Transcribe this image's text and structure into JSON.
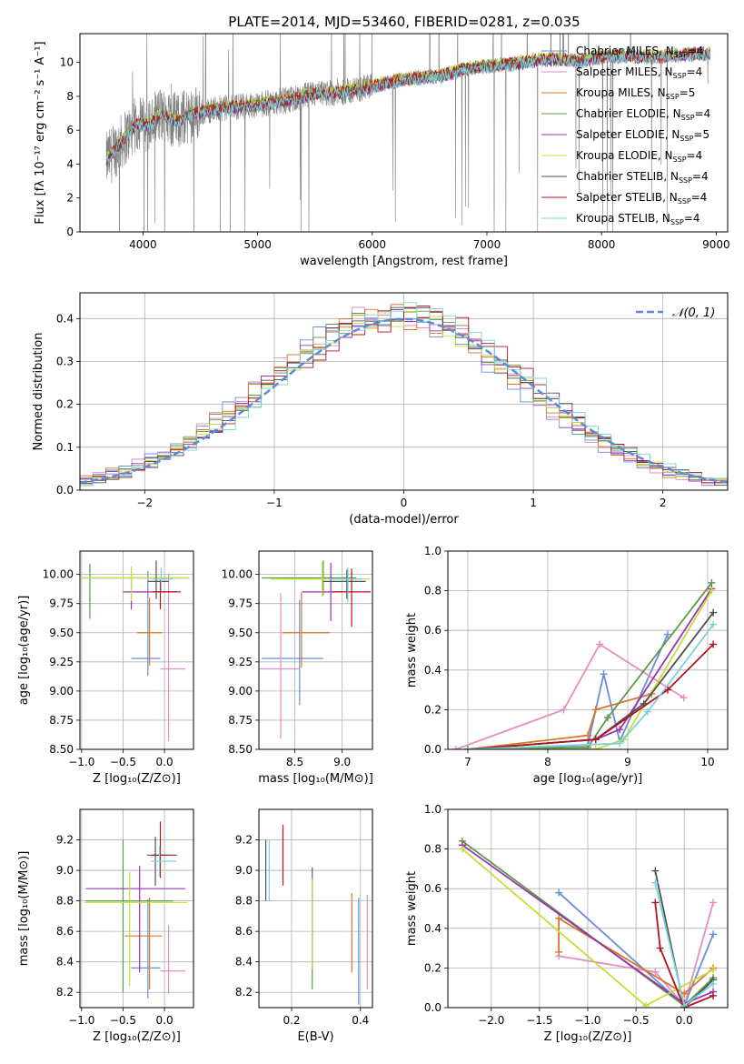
{
  "figure": {
    "title": "PLATE=2014, MJD=53460, FIBERID=0281, z=0.035"
  },
  "models": [
    {
      "name": "Chabrier MILES",
      "nssp": "4",
      "color": "#6a8ed6"
    },
    {
      "name": "Salpeter MILES",
      "nssp": "4",
      "color": "#e58dc3"
    },
    {
      "name": "Kroupa MILES",
      "nssp": "5",
      "color": "#d4782a"
    },
    {
      "name": "Chabrier ELODIE",
      "nssp": "4",
      "color": "#5a9a4a"
    },
    {
      "name": "Salpeter ELODIE",
      "nssp": "5",
      "color": "#9a32b4"
    },
    {
      "name": "Kroupa ELODIE",
      "nssp": "4",
      "color": "#c8dc3c"
    },
    {
      "name": "Chabrier STELIB",
      "nssp": "4",
      "color": "#505050"
    },
    {
      "name": "Salpeter STELIB",
      "nssp": "4",
      "color": "#b4141e"
    },
    {
      "name": "Kroupa STELIB",
      "nssp": "4",
      "color": "#78d2dc"
    }
  ],
  "chart_data": [
    {
      "id": "spectrum",
      "type": "line",
      "xlabel": "wavelength [Angstrom, rest frame]",
      "ylabel": "Flux [fλ 10⁻¹⁷ erg cm⁻² s⁻¹ A⁻¹]",
      "xlim": [
        3450,
        9100
      ],
      "ylim": [
        0,
        11.7
      ],
      "xticks": [
        4000,
        5000,
        6000,
        7000,
        8000,
        9000
      ],
      "yticks": [
        0,
        2,
        4,
        6,
        8,
        10
      ],
      "grid": false,
      "legend": "right",
      "data_series": {
        "name": "data",
        "color": "#808080",
        "x": [
          3680,
          3750,
          3850,
          3950,
          4050,
          4150,
          4300,
          4450,
          4600,
          4800,
          5000,
          5200,
          5400,
          5600,
          5800,
          6000,
          6200,
          6400,
          6600,
          6800,
          7000,
          7200,
          7400,
          7600,
          7800,
          8000,
          8200,
          8400,
          8600,
          8800,
          8950
        ],
        "y": [
          4.2,
          4.8,
          5.6,
          6.4,
          6.3,
          6.9,
          6.6,
          7.0,
          7.2,
          7.4,
          7.5,
          7.7,
          8.0,
          8.2,
          8.3,
          8.6,
          8.9,
          9.1,
          9.2,
          9.6,
          9.8,
          9.9,
          10.1,
          10.2,
          10.1,
          10.3,
          10.4,
          10.3,
          10.4,
          10.5,
          10.5
        ]
      },
      "model_offsets": [
        0.0,
        0.05,
        -0.05,
        0.08,
        -0.08,
        0.12,
        -0.02,
        0.03,
        -0.1
      ]
    },
    {
      "id": "residuals",
      "type": "histogram",
      "xlabel": "(data-model)/error",
      "ylabel": "Normed distribution",
      "xlim": [
        -2.5,
        2.5
      ],
      "ylim": [
        0,
        0.46
      ],
      "xticks": [
        -2,
        -1,
        0,
        1,
        2
      ],
      "yticks": [
        0.0,
        0.1,
        0.2,
        0.3,
        0.4
      ],
      "grid": true,
      "legend": "top-right",
      "reference": {
        "name": "𝒩(0, 1)",
        "color": "#5b8bd6",
        "mean": 0,
        "sigma": 1
      }
    },
    {
      "id": "age-vs-Z",
      "type": "errorbar",
      "xlabel": "Z [log₁₀(Z/Z⊙)]",
      "ylabel": "age  [log₁₀(age/yr)]",
      "xlim": [
        -1.02,
        0.35
      ],
      "ylim": [
        8.5,
        10.2
      ],
      "xticks": [
        -1.0,
        -0.5,
        0.0
      ],
      "yticks": [
        8.5,
        8.75,
        9.0,
        9.25,
        9.5,
        9.75,
        10.0
      ],
      "ytick_labels": [
        "8.50",
        "8.75",
        "9.00",
        "9.25",
        "9.50",
        "9.75",
        "10.00"
      ],
      "xtick_labels": [
        "−1.0",
        "−0.5",
        "0.0"
      ],
      "grid": true,
      "points": [
        {
          "x": -0.2,
          "xerr": [
            0.2,
            0.15
          ],
          "y": 9.28,
          "yerr": [
            0.15,
            0.75
          ]
        },
        {
          "x": 0.05,
          "xerr": [
            0.1,
            0.2
          ],
          "y": 9.19,
          "yerr": [
            0.62,
            0.82
          ]
        },
        {
          "x": -0.18,
          "xerr": [
            0.15,
            0.15
          ],
          "y": 9.5,
          "yerr": [
            0.28,
            0.3
          ]
        },
        {
          "x": -0.9,
          "xerr": [
            0.1,
            1.2
          ],
          "y": 9.97,
          "yerr": [
            0.35,
            0.12
          ]
        },
        {
          "x": -0.4,
          "xerr": [
            0.1,
            0.6
          ],
          "y": 9.85,
          "yerr": [
            0.15,
            0.15
          ]
        },
        {
          "x": -0.4,
          "xerr": [
            0.6,
            0.7
          ],
          "y": 9.97,
          "yerr": [
            0.2,
            0.1
          ]
        },
        {
          "x": -0.1,
          "xerr": [
            0.1,
            0.15
          ],
          "y": 9.94,
          "yerr": [
            0.15,
            0.18
          ]
        },
        {
          "x": -0.05,
          "xerr": [
            0.1,
            0.2
          ],
          "y": 9.85,
          "yerr": [
            0.15,
            0.1
          ]
        },
        {
          "x": -0.04,
          "xerr": [
            0.1,
            0.14
          ],
          "y": 9.96,
          "yerr": [
            0.1,
            0.1
          ]
        }
      ]
    },
    {
      "id": "age-vs-mass",
      "type": "errorbar",
      "xlabel": "mass [log₁₀(M/M⊙)]",
      "ylabel": "",
      "xlim": [
        8.12,
        9.32
      ],
      "ylim": [
        8.5,
        10.2
      ],
      "xticks": [
        8.5,
        9.0
      ],
      "xtick_labels": [
        "8.5",
        "9.0"
      ],
      "yticks": [
        8.5,
        8.75,
        9.0,
        9.25,
        9.5,
        9.75,
        10.0
      ],
      "ytick_labels": [
        "8.50",
        "8.75",
        "9.00",
        "9.25",
        "9.50",
        "9.75",
        "10.00"
      ],
      "grid": true,
      "points": [
        {
          "x": 8.55,
          "xerr": [
            0.4,
            0.25
          ],
          "y": 9.28,
          "yerr": [
            0.4,
            0.5
          ]
        },
        {
          "x": 8.35,
          "xerr": [
            0.25,
            0.2
          ],
          "y": 9.19,
          "yerr": [
            0.6,
            0.65
          ]
        },
        {
          "x": 8.57,
          "xerr": [
            0.2,
            0.3
          ],
          "y": 9.5,
          "yerr": [
            0.3,
            0.35
          ]
        },
        {
          "x": 8.8,
          "xerr": [
            0.65,
            0.35
          ],
          "y": 9.97,
          "yerr": [
            0.15,
            0.15
          ]
        },
        {
          "x": 8.88,
          "xerr": [
            0.3,
            0.2
          ],
          "y": 9.85,
          "yerr": [
            0.25,
            0.25
          ]
        },
        {
          "x": 8.79,
          "xerr": [
            0.55,
            0.5
          ],
          "y": 9.96,
          "yerr": [
            0.15,
            0.15
          ]
        },
        {
          "x": 9.05,
          "xerr": [
            0.25,
            0.2
          ],
          "y": 9.94,
          "yerr": [
            0.15,
            0.1
          ]
        },
        {
          "x": 9.1,
          "xerr": [
            0.2,
            0.2
          ],
          "y": 9.85,
          "yerr": [
            0.3,
            0.2
          ]
        },
        {
          "x": 9.06,
          "xerr": [
            0.2,
            0.15
          ],
          "y": 9.96,
          "yerr": [
            0.2,
            0.1
          ]
        }
      ]
    },
    {
      "id": "weight-vs-age",
      "type": "line",
      "xlabel": "age  [log₁₀(age/yr)]",
      "ylabel": "mass weight",
      "xlim": [
        6.75,
        10.25
      ],
      "ylim": [
        0,
        1.0
      ],
      "xticks": [
        7,
        8,
        9,
        10
      ],
      "yticks": [
        0.0,
        0.2,
        0.4,
        0.6,
        0.8,
        1.0
      ],
      "grid": true,
      "series": [
        {
          "x": [
            7.0,
            8.5,
            8.7,
            8.9,
            9.5
          ],
          "y": [
            0.0,
            0.02,
            0.38,
            0.04,
            0.58
          ]
        },
        {
          "x": [
            6.85,
            8.2,
            8.65,
            9.7
          ],
          "y": [
            0.0,
            0.2,
            0.53,
            0.26
          ]
        },
        {
          "x": [
            7.0,
            8.5,
            8.6,
            9.3
          ],
          "y": [
            0.0,
            0.07,
            0.2,
            0.28
          ]
        },
        {
          "x": [
            7.0,
            8.5,
            8.75,
            10.05
          ],
          "y": [
            0.0,
            0.01,
            0.16,
            0.84
          ]
        },
        {
          "x": [
            7.0,
            8.6,
            8.9,
            10.05
          ],
          "y": [
            0.0,
            0.05,
            0.1,
            0.81
          ]
        },
        {
          "x": [
            7.0,
            8.6,
            8.95,
            10.05
          ],
          "y": [
            0.0,
            0.0,
            0.05,
            0.8
          ]
        },
        {
          "x": [
            7.0,
            8.6,
            9.2,
            10.07
          ],
          "y": [
            0.0,
            0.05,
            0.23,
            0.69
          ]
        },
        {
          "x": [
            7.0,
            8.6,
            9.5,
            10.07
          ],
          "y": [
            0.0,
            0.05,
            0.3,
            0.53
          ]
        },
        {
          "x": [
            7.0,
            8.9,
            9.25,
            10.07
          ],
          "y": [
            0.0,
            0.03,
            0.19,
            0.63
          ]
        }
      ]
    },
    {
      "id": "mass-vs-Z",
      "type": "errorbar",
      "xlabel": "Z [log₁₀(Z/Z⊙)]",
      "ylabel": "mass [log₁₀(M/M⊙)]",
      "xlim": [
        -1.02,
        0.35
      ],
      "ylim": [
        8.1,
        9.4
      ],
      "xticks": [
        -1.0,
        -0.5,
        0.0
      ],
      "xtick_labels": [
        "−1.0",
        "−0.5",
        "0.0"
      ],
      "yticks": [
        8.2,
        8.4,
        8.6,
        8.8,
        9.0,
        9.2
      ],
      "ytick_labels": [
        "8.2",
        "8.4",
        "8.6",
        "8.8",
        "9.0",
        "9.2"
      ],
      "grid": true,
      "points": [
        {
          "x": -0.2,
          "xerr": [
            0.2,
            0.15
          ],
          "y": 8.36,
          "yerr": [
            0.2,
            0.45
          ]
        },
        {
          "x": 0.05,
          "xerr": [
            0.1,
            0.2
          ],
          "y": 8.34,
          "yerr": [
            0.15,
            0.3
          ]
        },
        {
          "x": -0.18,
          "xerr": [
            0.3,
            0.15
          ],
          "y": 8.57,
          "yerr": [
            0.35,
            0.25
          ]
        },
        {
          "x": -0.5,
          "xerr": [
            0.45,
            0.6
          ],
          "y": 8.8,
          "yerr": [
            0.6,
            0.4
          ]
        },
        {
          "x": -0.3,
          "xerr": [
            0.65,
            0.55
          ],
          "y": 8.88,
          "yerr": [
            0.55,
            0.15
          ]
        },
        {
          "x": -0.42,
          "xerr": [
            0.55,
            0.7
          ],
          "y": 8.79,
          "yerr": [
            0.55,
            0.2
          ]
        },
        {
          "x": -0.11,
          "xerr": [
            0.1,
            0.15
          ],
          "y": 9.1,
          "yerr": [
            0.2,
            0.12
          ]
        },
        {
          "x": -0.05,
          "xerr": [
            0.1,
            0.2
          ],
          "y": 9.1,
          "yerr": [
            0.15,
            0.22
          ]
        },
        {
          "x": -0.06,
          "xerr": [
            0.1,
            0.2
          ],
          "y": 9.06,
          "yerr": [
            0.1,
            0.1
          ]
        }
      ]
    },
    {
      "id": "mass-vs-EBV",
      "type": "errorbar",
      "xlabel": "E(B-V)",
      "ylabel": "",
      "xlim": [
        0.105,
        0.435
      ],
      "ylim": [
        8.1,
        9.4
      ],
      "xticks": [
        0.2,
        0.4
      ],
      "xtick_labels": [
        "0.2",
        "0.4"
      ],
      "yticks": [
        8.2,
        8.4,
        8.6,
        8.8,
        9.0,
        9.2
      ],
      "ytick_labels": [
        "8.2",
        "8.4",
        "8.6",
        "8.8",
        "9.0",
        "9.2"
      ],
      "grid": true,
      "points": [
        {
          "x": 0.395,
          "xerr": [
            0,
            0
          ],
          "y": 8.37,
          "yerr": [
            0.25,
            0.45
          ]
        },
        {
          "x": 0.42,
          "xerr": [
            0,
            0
          ],
          "y": 8.44,
          "yerr": [
            0.22,
            0.4
          ]
        },
        {
          "x": 0.375,
          "xerr": [
            0,
            0
          ],
          "y": 8.58,
          "yerr": [
            0.25,
            0.27
          ]
        },
        {
          "x": 0.26,
          "xerr": [
            0,
            0
          ],
          "y": 8.6,
          "yerr": [
            0.38,
            0.35
          ]
        },
        {
          "x": 0.26,
          "xerr": [
            0,
            0
          ],
          "y": 8.7,
          "yerr": [
            0.35,
            0.32
          ]
        },
        {
          "x": 0.26,
          "xerr": [
            0,
            0
          ],
          "y": 8.65,
          "yerr": [
            0.3,
            0.3
          ]
        },
        {
          "x": 0.125,
          "xerr": [
            0,
            0
          ],
          "y": 9.0,
          "yerr": [
            0.2,
            0.2
          ]
        },
        {
          "x": 0.175,
          "xerr": [
            0,
            0
          ],
          "y": 9.1,
          "yerr": [
            0.2,
            0.2
          ]
        },
        {
          "x": 0.135,
          "xerr": [
            0,
            0
          ],
          "y": 9.0,
          "yerr": [
            0.2,
            0.2
          ]
        }
      ]
    },
    {
      "id": "weight-vs-Z",
      "type": "line",
      "xlabel": "Z [log₁₀(Z/Z⊙)]",
      "ylabel": "mass weight",
      "xlim": [
        -2.45,
        0.45
      ],
      "ylim": [
        0,
        1.0
      ],
      "xticks": [
        -2.0,
        -1.5,
        -1.0,
        -0.5,
        0.0
      ],
      "xtick_labels": [
        "−2.0",
        "−1.5",
        "−1.0",
        "−0.5",
        "0.0"
      ],
      "yticks": [
        0.0,
        0.2,
        0.4,
        0.6,
        0.8,
        1.0
      ],
      "grid": true,
      "series": [
        {
          "x": [
            -1.3,
            0.0,
            0.3
          ],
          "y": [
            0.58,
            0.01,
            0.37
          ]
        },
        {
          "x": [
            -1.3,
            -0.3,
            0.0,
            0.3
          ],
          "y": [
            0.26,
            0.18,
            0.01,
            0.53
          ]
        },
        {
          "x": [
            -1.3,
            -1.3,
            0.0,
            0.3
          ],
          "y": [
            0.28,
            0.45,
            0.07,
            0.2
          ]
        },
        {
          "x": [
            -2.3,
            0.0,
            0.3
          ],
          "y": [
            0.84,
            0.01,
            0.15
          ]
        },
        {
          "x": [
            -2.3,
            0.0,
            0.3
          ],
          "y": [
            0.82,
            0.02,
            0.08
          ]
        },
        {
          "x": [
            -2.3,
            -0.4,
            0.3
          ],
          "y": [
            0.8,
            0.01,
            0.19
          ]
        },
        {
          "x": [
            -0.3,
            0.0,
            0.3
          ],
          "y": [
            0.69,
            0.0,
            0.14
          ]
        },
        {
          "x": [
            -0.3,
            -0.25,
            0.0,
            0.3
          ],
          "y": [
            0.53,
            0.3,
            0.0,
            0.06
          ]
        },
        {
          "x": [
            -0.3,
            0.0,
            0.3
          ],
          "y": [
            0.63,
            0.01,
            0.12
          ]
        }
      ]
    }
  ]
}
